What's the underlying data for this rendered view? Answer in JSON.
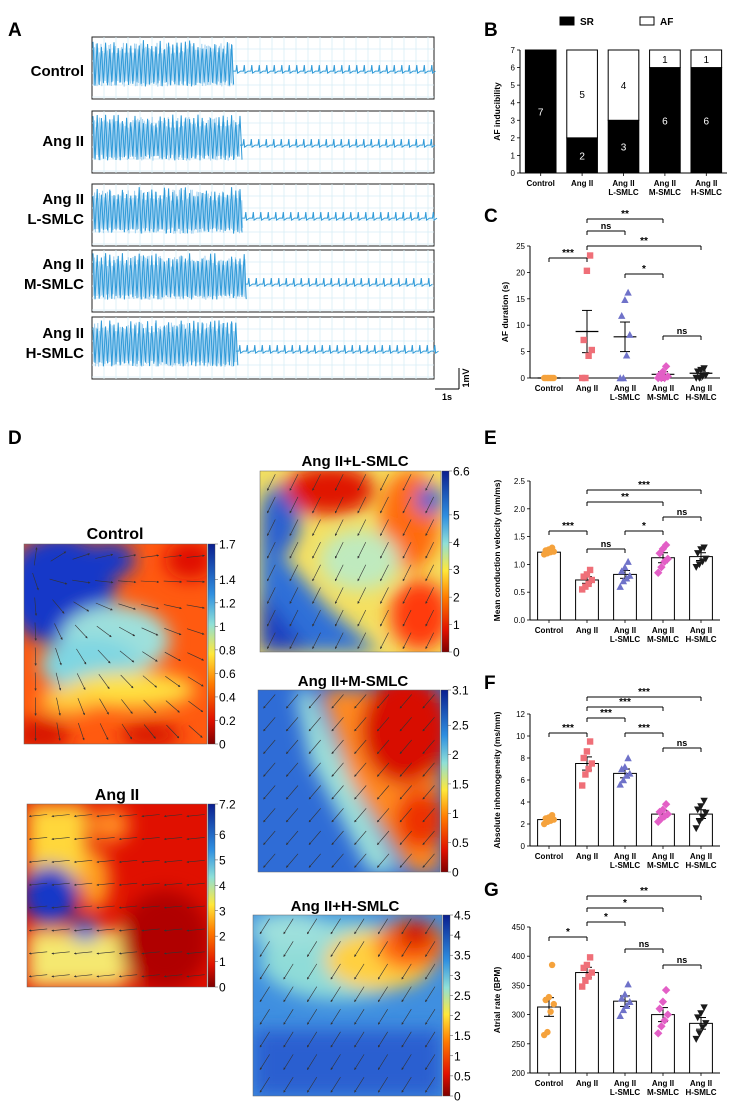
{
  "panel_labels": {
    "a": "A",
    "b": "B",
    "c": "C",
    "d": "D",
    "e": "E",
    "f": "F",
    "g": "G"
  },
  "colors": {
    "trace": "#2f9ad8",
    "trace_light": "#9fd0f0",
    "grid": "#d7eef6",
    "control": "#f5a23c",
    "ang": "#ef6f78",
    "l_smlc": "#6f72c9",
    "m_smlc": "#e35fc6",
    "h_smlc": "#1a1a1a",
    "sr": "#000000",
    "af": "#ffffff"
  },
  "panel_a": {
    "groups": [
      "Control",
      "Ang II",
      "Ang II\nL-SMLC",
      "Ang II\nM-SMLC",
      "Ang II\nH-SMLC"
    ],
    "scale_time": "1s",
    "scale_volt": "1mV"
  },
  "chart_data": [
    {
      "panel": "B",
      "type": "bar",
      "stacked": true,
      "categories": [
        "Control",
        "Ang II",
        "Ang II\nL-SMLC",
        "Ang II\nM-SMLC",
        "Ang II\nH-SMLC"
      ],
      "series": [
        {
          "name": "SR",
          "color": "#000000",
          "values": [
            7,
            2,
            3,
            6,
            6
          ]
        },
        {
          "name": "AF",
          "color": "#ffffff",
          "values": [
            0,
            5,
            4,
            1,
            1
          ]
        }
      ],
      "data_labels": [
        [
          "7",
          "",
          ""
        ],
        [
          "2",
          "5"
        ],
        [
          "3",
          "4"
        ],
        [
          "6",
          "1"
        ],
        [
          "6",
          "1"
        ]
      ],
      "ylabel": "AF inducibility",
      "ylim": [
        0,
        7
      ],
      "yticks": [
        0,
        1,
        2,
        3,
        4,
        5,
        6,
        7
      ],
      "legend": "top"
    },
    {
      "panel": "C",
      "type": "scatter",
      "categories": [
        "Control",
        "Ang II",
        "Ang II\nL-SMLC",
        "Ang II\nM-SMLC",
        "Ang II\nH-SMLC"
      ],
      "ylabel": "AF duration (s)",
      "ylim": [
        0,
        25
      ],
      "yticks": [
        0,
        5,
        10,
        15,
        20,
        25
      ],
      "bars": "mean",
      "means": [
        0,
        8.8,
        7.8,
        0.7,
        0.9
      ],
      "sem": [
        0,
        4.0,
        2.8,
        0.5,
        0.4
      ],
      "points": [
        [
          0,
          0,
          0,
          0,
          0,
          0,
          0
        ],
        [
          0,
          0,
          4.2,
          5.3,
          7.2,
          20.3,
          23.2
        ],
        [
          0,
          0,
          4.3,
          8.2,
          11.8,
          14.8,
          16.2
        ],
        [
          0,
          0,
          0,
          0.3,
          0.6,
          1.2,
          2.2
        ],
        [
          0,
          0,
          0.3,
          0.5,
          1.2,
          1.5,
          1.8
        ]
      ],
      "annotations": [
        {
          "from": 0,
          "to": 1,
          "text": "***"
        },
        {
          "from": 1,
          "to": 2,
          "text": "ns"
        },
        {
          "from": 1,
          "to": 3,
          "text": "**"
        },
        {
          "from": 1,
          "to": 4,
          "text": "**"
        },
        {
          "from": 2,
          "to": 3,
          "text": "*"
        },
        {
          "from": 3,
          "to": 4,
          "text": "ns"
        }
      ]
    },
    {
      "panel": "E",
      "type": "bar",
      "categories": [
        "Control",
        "Ang II",
        "Ang II\nL-SMLC",
        "Ang II\nM-SMLC",
        "Ang II\nH-SMLC"
      ],
      "ylabel": "Mean conduction velocity (mm/ms)",
      "ylim": [
        0,
        2.5
      ],
      "yticks": [
        0.0,
        0.5,
        1.0,
        1.5,
        2.0,
        2.5
      ],
      "means": [
        1.22,
        0.72,
        0.82,
        1.12,
        1.14
      ],
      "sem": [
        0.03,
        0.06,
        0.07,
        0.09,
        0.07
      ],
      "points": [
        [
          1.18,
          1.2,
          1.22,
          1.23,
          1.25,
          1.27,
          1.3
        ],
        [
          0.55,
          0.6,
          0.65,
          0.72,
          0.78,
          0.82,
          0.9
        ],
        [
          0.6,
          0.7,
          0.75,
          0.8,
          0.88,
          0.95,
          1.05
        ],
        [
          0.85,
          0.95,
          1.05,
          1.1,
          1.2,
          1.28,
          1.35
        ],
        [
          0.95,
          1.0,
          1.05,
          1.1,
          1.2,
          1.27,
          1.3
        ]
      ],
      "annotations": [
        {
          "from": 0,
          "to": 1,
          "text": "***"
        },
        {
          "from": 1,
          "to": 2,
          "text": "ns"
        },
        {
          "from": 2,
          "to": 3,
          "text": "*"
        },
        {
          "from": 3,
          "to": 4,
          "text": "ns"
        },
        {
          "from": 1,
          "to": 3,
          "text": "**"
        },
        {
          "from": 1,
          "to": 4,
          "text": "***"
        }
      ]
    },
    {
      "panel": "F",
      "type": "bar",
      "categories": [
        "Control",
        "Ang II",
        "Ang II\nL-SMLC",
        "Ang II\nM-SMLC",
        "Ang II\nH-SMLC"
      ],
      "ylabel": "Absolute inhomogeneity (ms/mm)",
      "ylim": [
        0,
        12
      ],
      "yticks": [
        0,
        2,
        4,
        6,
        8,
        10,
        12
      ],
      "means": [
        2.4,
        7.5,
        6.6,
        2.9,
        2.9
      ],
      "sem": [
        0.2,
        0.6,
        0.4,
        0.3,
        0.4
      ],
      "points": [
        [
          2.0,
          2.2,
          2.3,
          2.4,
          2.5,
          2.6,
          2.8
        ],
        [
          5.5,
          6.5,
          7.0,
          7.5,
          8.0,
          8.6,
          9.5
        ],
        [
          5.6,
          6.0,
          6.4,
          6.6,
          7.0,
          7.2,
          8.0
        ],
        [
          2.2,
          2.5,
          2.7,
          2.9,
          3.1,
          3.3,
          3.8
        ],
        [
          1.6,
          2.2,
          2.6,
          3.0,
          3.3,
          3.6,
          4.1
        ]
      ],
      "annotations": [
        {
          "from": 0,
          "to": 1,
          "text": "***"
        },
        {
          "from": 1,
          "to": 2,
          "text": "***"
        },
        {
          "from": 1,
          "to": 3,
          "text": "***"
        },
        {
          "from": 2,
          "to": 3,
          "text": "***"
        },
        {
          "from": 3,
          "to": 4,
          "text": "ns"
        },
        {
          "from": 1,
          "to": 4,
          "text": "***"
        }
      ]
    },
    {
      "panel": "G",
      "type": "bar",
      "categories": [
        "Control",
        "Ang II",
        "Ang II\nL-SMLC",
        "Ang II\nM-SMLC",
        "Ang II\nH-SMLC"
      ],
      "ylabel": "Atrial rate (BPM)",
      "ylim": [
        200,
        450
      ],
      "yticks": [
        200,
        250,
        300,
        350,
        400,
        450
      ],
      "means": [
        313,
        372,
        323,
        300,
        285
      ],
      "sem": [
        16,
        9,
        9,
        12,
        10
      ],
      "points": [
        [
          265,
          270,
          305,
          318,
          325,
          330,
          385
        ],
        [
          348,
          358,
          365,
          372,
          380,
          385,
          398
        ],
        [
          298,
          308,
          315,
          322,
          328,
          335,
          352
        ],
        [
          268,
          280,
          290,
          300,
          310,
          322,
          342
        ],
        [
          258,
          268,
          278,
          285,
          295,
          302,
          312
        ]
      ],
      "annotations": [
        {
          "from": 0,
          "to": 1,
          "text": "*"
        },
        {
          "from": 1,
          "to": 2,
          "text": "*"
        },
        {
          "from": 2,
          "to": 3,
          "text": "ns"
        },
        {
          "from": 3,
          "to": 4,
          "text": "ns"
        },
        {
          "from": 1,
          "to": 3,
          "text": "*"
        },
        {
          "from": 1,
          "to": 4,
          "text": "**"
        }
      ]
    },
    {
      "panel": "D",
      "type": "heatmap",
      "maps": [
        {
          "title": "Control",
          "colorbar_max": 1.7,
          "ticks": [
            0,
            0.2,
            0.4,
            0.6,
            0.8,
            1,
            1.2,
            1.4,
            1.7
          ]
        },
        {
          "title": "Ang II",
          "colorbar_max": 7.2,
          "ticks": [
            0,
            1,
            2,
            3,
            4,
            5,
            6,
            7.2
          ]
        },
        {
          "title": "Ang II+L-SMLC",
          "colorbar_max": 6.6,
          "ticks": [
            0,
            1,
            2,
            3,
            4,
            5,
            6.6
          ]
        },
        {
          "title": "Ang II+M-SMLC",
          "colorbar_max": 3.1,
          "ticks": [
            0,
            0.5,
            1,
            1.5,
            2,
            2.5,
            3.1
          ]
        },
        {
          "title": "Ang II+H-SMLC",
          "colorbar_max": 4.5,
          "ticks": [
            0,
            0.5,
            1,
            1.5,
            2,
            2.5,
            3,
            3.5,
            4,
            4.5
          ]
        }
      ]
    }
  ]
}
